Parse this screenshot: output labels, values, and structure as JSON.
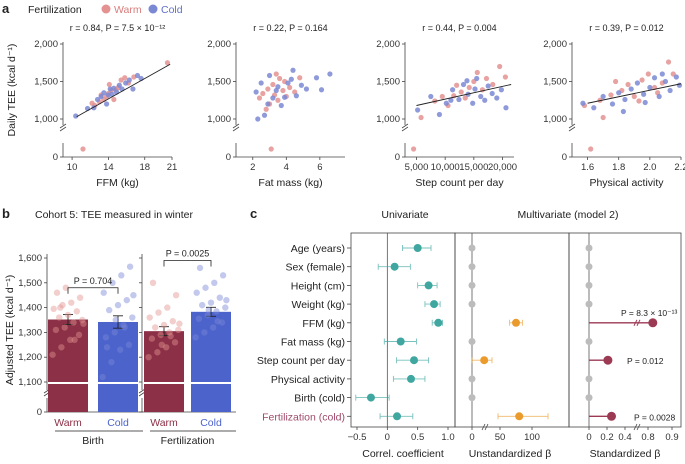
{
  "panel_labels": {
    "a": "a",
    "b": "b",
    "c": "c"
  },
  "colors": {
    "warm": "#e39291",
    "cold": "#7b88d4",
    "warm_bar": "#8b3046",
    "cold_bar": "#4c63cc",
    "teal": "#3fa6a0",
    "orange": "#eb9b2c",
    "maroon": "#9c3a54",
    "grey": "#bcbcbc"
  },
  "legend": {
    "title": "Fertilization",
    "warm": "Warm",
    "cold": "Cold"
  },
  "chart_data": [
    {
      "type": "scatter",
      "id": "a1",
      "title": "r = 0.84, P = 7.5 × 10⁻¹²",
      "xlabel": "FFM (kg)",
      "ylabel": "Daily TEE (kcal d⁻¹)",
      "xlim": [
        9,
        21
      ],
      "ylim": [
        0,
        2000
      ],
      "xticks": [
        {
          "v": 10,
          "l": "10"
        },
        {
          "v": 14,
          "l": "14"
        },
        {
          "v": 18,
          "l": "18"
        },
        {
          "v": 21,
          "l": "21"
        }
      ],
      "yticks": [
        {
          "v": 0,
          "l": "0"
        },
        {
          "v": 1000,
          "l": "1,000"
        },
        {
          "v": 1500,
          "l": "1,500"
        },
        {
          "v": 2000,
          "l": "2,000"
        }
      ],
      "fit": [
        [
          10.5,
          1030
        ],
        [
          20.8,
          1730
        ]
      ],
      "warm": [
        [
          11.2,
          900
        ],
        [
          12.2,
          1210
        ],
        [
          12.5,
          1180
        ],
        [
          13.0,
          1230
        ],
        [
          13.2,
          1320
        ],
        [
          13.5,
          1260
        ],
        [
          13.8,
          1300
        ],
        [
          14.0,
          1340
        ],
        [
          14.1,
          1460
        ],
        [
          14.3,
          1380
        ],
        [
          14.6,
          1260
        ],
        [
          14.8,
          1390
        ],
        [
          15.1,
          1420
        ],
        [
          15.4,
          1520
        ],
        [
          15.8,
          1550
        ],
        [
          16.2,
          1480
        ],
        [
          16.8,
          1560
        ],
        [
          20.5,
          1750
        ]
      ],
      "cold": [
        [
          10.4,
          1040
        ],
        [
          11.7,
          1140
        ],
        [
          12.4,
          1150
        ],
        [
          12.8,
          1260
        ],
        [
          13.2,
          1300
        ],
        [
          13.5,
          1350
        ],
        [
          13.8,
          1200
        ],
        [
          14.0,
          1320
        ],
        [
          14.2,
          1400
        ],
        [
          14.4,
          1330
        ],
        [
          14.6,
          1410
        ],
        [
          14.9,
          1360
        ],
        [
          15.2,
          1450
        ],
        [
          15.5,
          1400
        ],
        [
          15.9,
          1480
        ],
        [
          16.3,
          1520
        ],
        [
          16.7,
          1400
        ],
        [
          17.2,
          1580
        ],
        [
          17.6,
          1540
        ]
      ]
    },
    {
      "type": "scatter",
      "id": "a2",
      "title": "r = 0.22, P = 0.164",
      "xlabel": "Fat mass (kg)",
      "xlim": [
        1,
        7.5
      ],
      "ylim": [
        0,
        2000
      ],
      "xticks": [
        {
          "v": 2,
          "l": "2"
        },
        {
          "v": 4,
          "l": "4"
        },
        {
          "v": 6,
          "l": "6"
        }
      ],
      "yticks": [
        {
          "v": 0,
          "l": "0"
        },
        {
          "v": 1000,
          "l": "1,000"
        },
        {
          "v": 1500,
          "l": "1,500"
        },
        {
          "v": 2000,
          "l": "2,000"
        }
      ],
      "warm": [
        [
          2.4,
          1280
        ],
        [
          2.6,
          1340
        ],
        [
          2.9,
          1400
        ],
        [
          3.0,
          1200
        ],
        [
          3.2,
          1460
        ],
        [
          3.3,
          1320
        ],
        [
          3.5,
          1250
        ],
        [
          3.6,
          1540
        ],
        [
          3.8,
          1380
        ],
        [
          4.0,
          1300
        ],
        [
          4.2,
          1420
        ],
        [
          4.5,
          1360
        ],
        [
          3.1,
          930
        ],
        [
          2.8,
          1130
        ],
        [
          3.9,
          1500
        ],
        [
          4.8,
          1550
        ],
        [
          3.4,
          1600
        ]
      ],
      "cold": [
        [
          2.2,
          1360
        ],
        [
          2.5,
          1480
        ],
        [
          2.7,
          1050
        ],
        [
          2.9,
          1200
        ],
        [
          3.0,
          1580
        ],
        [
          3.2,
          1280
        ],
        [
          3.4,
          1380
        ],
        [
          3.5,
          1430
        ],
        [
          3.7,
          1180
        ],
        [
          3.9,
          1290
        ],
        [
          4.1,
          1480
        ],
        [
          4.3,
          1530
        ],
        [
          4.6,
          1310
        ],
        [
          4.9,
          1450
        ],
        [
          5.2,
          1400
        ],
        [
          5.8,
          1550
        ],
        [
          6.6,
          1600
        ],
        [
          6.1,
          1390
        ],
        [
          2.3,
          1000
        ],
        [
          4.4,
          1650
        ]
      ]
    },
    {
      "type": "scatter",
      "id": "a3",
      "title": "r = 0.44, P = 0.004",
      "xlabel": "Step count per day",
      "xlim": [
        3000,
        22000
      ],
      "ylim": [
        0,
        2000
      ],
      "xticks": [
        {
          "v": 5000,
          "l": "5,000"
        },
        {
          "v": 10000,
          "l": "10,000"
        },
        {
          "v": 15000,
          "l": "15,000"
        },
        {
          "v": 20000,
          "l": "20,000"
        }
      ],
      "yticks": [
        {
          "v": 0,
          "l": "0"
        },
        {
          "v": 1000,
          "l": "1,000"
        },
        {
          "v": 1500,
          "l": "1,500"
        },
        {
          "v": 2000,
          "l": "2,000"
        }
      ],
      "fit": [
        [
          5000,
          1180
        ],
        [
          21500,
          1460
        ]
      ],
      "warm": [
        [
          4500,
          900
        ],
        [
          5800,
          1020
        ],
        [
          8200,
          1240
        ],
        [
          10500,
          1180
        ],
        [
          11500,
          1310
        ],
        [
          12800,
          1360
        ],
        [
          13500,
          1280
        ],
        [
          14200,
          1420
        ],
        [
          15000,
          1500
        ],
        [
          15600,
          1620
        ],
        [
          16500,
          1390
        ],
        [
          17200,
          1540
        ],
        [
          18300,
          1460
        ],
        [
          19500,
          1700
        ],
        [
          20500,
          1560
        ],
        [
          12000,
          1450
        ],
        [
          9500,
          1300
        ]
      ],
      "cold": [
        [
          5200,
          1120
        ],
        [
          7500,
          1300
        ],
        [
          9000,
          1060
        ],
        [
          10200,
          1210
        ],
        [
          11300,
          1390
        ],
        [
          12400,
          1260
        ],
        [
          13200,
          1460
        ],
        [
          14000,
          1330
        ],
        [
          14800,
          1210
        ],
        [
          15500,
          1540
        ],
        [
          16200,
          1300
        ],
        [
          16900,
          1250
        ],
        [
          17500,
          1440
        ],
        [
          18200,
          1340
        ],
        [
          19000,
          1280
        ],
        [
          19800,
          1390
        ],
        [
          20600,
          1150
        ],
        [
          15200,
          1400
        ],
        [
          13800,
          1510
        ],
        [
          11000,
          1250
        ]
      ]
    },
    {
      "type": "scatter",
      "id": "a4",
      "title": "r = 0.39, P = 0.012",
      "xlabel": "Physical activity",
      "xlim": [
        1.5,
        2.2
      ],
      "ylim": [
        0,
        2000
      ],
      "xticks": [
        {
          "v": 1.6,
          "l": "1.6"
        },
        {
          "v": 1.8,
          "l": "1.8"
        },
        {
          "v": 2.0,
          "l": "2.0"
        },
        {
          "v": 2.2,
          "l": "2.2"
        }
      ],
      "yticks": [
        {
          "v": 0,
          "l": "0"
        },
        {
          "v": 1000,
          "l": "1,000"
        },
        {
          "v": 1500,
          "l": "1,500"
        },
        {
          "v": 2000,
          "l": "2,000"
        }
      ],
      "fit": [
        [
          1.6,
          1210
        ],
        [
          2.2,
          1470
        ]
      ],
      "warm": [
        [
          1.58,
          1180
        ],
        [
          1.62,
          900
        ],
        [
          1.68,
          1250
        ],
        [
          1.75,
          1320
        ],
        [
          1.82,
          1380
        ],
        [
          1.86,
          1460
        ],
        [
          1.9,
          1300
        ],
        [
          1.95,
          1520
        ],
        [
          1.99,
          1600
        ],
        [
          2.03,
          1420
        ],
        [
          2.08,
          1480
        ],
        [
          2.12,
          1760
        ],
        [
          2.15,
          1600
        ],
        [
          1.78,
          1500
        ],
        [
          1.93,
          1240
        ],
        [
          2.05,
          1350
        ],
        [
          1.7,
          1020
        ]
      ],
      "cold": [
        [
          1.57,
          1210
        ],
        [
          1.64,
          1150
        ],
        [
          1.7,
          1300
        ],
        [
          1.76,
          1200
        ],
        [
          1.8,
          1350
        ],
        [
          1.84,
          1260
        ],
        [
          1.88,
          1400
        ],
        [
          1.92,
          1480
        ],
        [
          1.96,
          1330
        ],
        [
          2.0,
          1420
        ],
        [
          2.03,
          1550
        ],
        [
          2.06,
          1300
        ],
        [
          2.1,
          1500
        ],
        [
          2.13,
          1380
        ],
        [
          2.17,
          1560
        ],
        [
          2.19,
          1450
        ],
        [
          1.83,
          1100
        ],
        [
          1.97,
          1220
        ],
        [
          2.08,
          1600
        ]
      ]
    },
    {
      "type": "bar",
      "id": "b1",
      "title": "Cohort 5: TEE measured in winter",
      "ylabel": "Adjusted TEE (kcal d⁻¹)",
      "xlabel": "Birth",
      "categories": [
        "Warm",
        "Cold"
      ],
      "values": [
        1352,
        1342
      ],
      "errors": [
        20,
        25
      ],
      "p_text": "P = 0.704",
      "ylim": [
        1000,
        1600
      ],
      "yticks": [
        {
          "v": 1000,
          "l": "0"
        },
        {
          "v": 1100,
          "l": "1,100"
        },
        {
          "v": 1200,
          "l": "1,200"
        },
        {
          "v": 1300,
          "l": "1,300"
        },
        {
          "v": 1400,
          "l": "1,400"
        },
        {
          "v": 1500,
          "l": "1,500"
        },
        {
          "v": 1600,
          "l": "1,600"
        }
      ],
      "warm_points": [
        1210,
        1240,
        1270,
        1290,
        1310,
        1320,
        1340,
        1350,
        1360,
        1370,
        1385,
        1395,
        1410,
        1420,
        1440,
        1460,
        1480,
        1270,
        1335,
        1400
      ],
      "cold_points": [
        1120,
        1180,
        1230,
        1250,
        1280,
        1300,
        1330,
        1360,
        1390,
        1410,
        1430,
        1460,
        1500,
        1530,
        1565,
        1240,
        1350,
        1320,
        1450
      ]
    },
    {
      "type": "bar",
      "id": "b2",
      "xlabel": "Fertilization",
      "categories": [
        "Warm",
        "Cold"
      ],
      "values": [
        1305,
        1383
      ],
      "errors": [
        18,
        18
      ],
      "p_text": "P = 0.0025",
      "ylim": [
        1000,
        1600
      ],
      "yticks": [
        {
          "v": 1000,
          "l": "0"
        },
        {
          "v": 1100,
          "l": "1,100"
        },
        {
          "v": 1200,
          "l": "1,200"
        },
        {
          "v": 1300,
          "l": "1,300"
        },
        {
          "v": 1400,
          "l": "1,400"
        },
        {
          "v": 1500,
          "l": "1,500"
        },
        {
          "v": 1600,
          "l": "1,600"
        }
      ],
      "warm_points": [
        1200,
        1220,
        1240,
        1260,
        1275,
        1290,
        1300,
        1310,
        1320,
        1330,
        1345,
        1360,
        1380,
        1400,
        1450,
        1500,
        1250,
        1285,
        1335
      ],
      "cold_points": [
        1280,
        1300,
        1320,
        1340,
        1355,
        1370,
        1385,
        1400,
        1410,
        1420,
        1440,
        1460,
        1480,
        1500,
        1530,
        1560,
        1390,
        1345,
        1430
      ]
    },
    {
      "type": "forest",
      "id": "c",
      "headers": {
        "univariate": "Univariate",
        "multivariate": "Multivariate (model 2)"
      },
      "rows": [
        "Age (years)",
        "Sex (female)",
        "Height (cm)",
        "Weight (kg)",
        "FFM (kg)",
        "Fat mass (kg)",
        "Step count per day",
        "Physical activity",
        "Birth (cold)",
        "Fertilization (cold)"
      ],
      "univariate": {
        "xlabel": "Correl. coefficient",
        "xlim": [
          -0.5,
          1.0
        ],
        "xticks": [
          {
            "v": -0.5,
            "l": "−0.5"
          },
          {
            "v": 0,
            "l": "0"
          },
          {
            "v": 0.5,
            "l": "0.5"
          },
          {
            "v": 1.0,
            "l": "1.0"
          }
        ],
        "est": [
          0.5,
          0.12,
          0.68,
          0.77,
          0.84,
          0.22,
          0.44,
          0.39,
          -0.27,
          0.16
        ],
        "lo": [
          0.25,
          -0.15,
          0.5,
          0.62,
          0.74,
          -0.05,
          0.15,
          0.1,
          -0.52,
          -0.12
        ],
        "hi": [
          0.72,
          0.38,
          0.82,
          0.87,
          0.91,
          0.48,
          0.68,
          0.62,
          0.03,
          0.42
        ]
      },
      "unstandardized": {
        "xlabel": "Unstandardized β",
        "xticks": [
          {
            "v": 0,
            "l": "0"
          },
          {
            "v": 50,
            "l": "50"
          },
          {
            "v": 100,
            "l": "100"
          }
        ],
        "rows_idx": [
          4,
          6,
          9
        ],
        "est": [
          75,
          12,
          80
        ],
        "lo": [
          65,
          0,
          35
        ],
        "hi": [
          85,
          25,
          125
        ]
      },
      "standardized": {
        "xlabel": "Standardized β",
        "xticks": [
          {
            "v": 0,
            "l": "0"
          },
          {
            "v": 0.2,
            "l": "0.2"
          },
          {
            "v": 0.4,
            "l": "0.4"
          },
          {
            "v": 0.8,
            "l": "0.8"
          },
          {
            "v": 0.9,
            "l": "0.9"
          }
        ],
        "rows_idx": [
          4,
          6,
          9
        ],
        "est": [
          0.82,
          0.21,
          0.25
        ],
        "p_texts": [
          "P = 8.3 × 10⁻¹³",
          "P = 0.012",
          "P = 0.0028"
        ]
      }
    }
  ]
}
